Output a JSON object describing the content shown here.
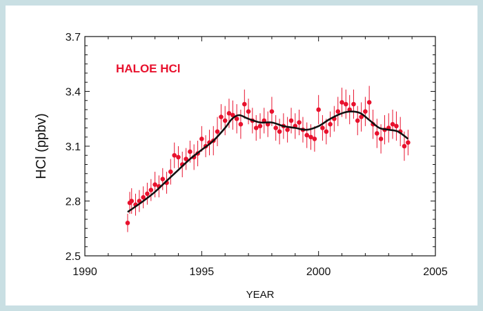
{
  "chart_data": {
    "type": "scatter",
    "title": "HALOE HCl",
    "xlabel": "YEAR",
    "ylabel": "HCl (ppbv)",
    "xlim": [
      1990,
      2005
    ],
    "ylim": [
      2.5,
      3.7
    ],
    "x_ticks": [
      1990,
      1995,
      2000,
      2005
    ],
    "x_tick_labels": [
      "1990",
      "1995",
      "2000",
      "2005"
    ],
    "y_ticks": [
      2.5,
      2.8,
      3.1,
      3.4,
      3.7
    ],
    "y_tick_labels": [
      "2.5",
      "2.8",
      "3.1",
      "3.4",
      "3.7"
    ],
    "grid": false,
    "colors": {
      "points": "#e8112d",
      "fit": "#111111",
      "title": "#e8112d"
    },
    "series": [
      {
        "kind": "points_with_error_bars",
        "x": [
          1991.83,
          1991.92,
          1992.0,
          1992.17,
          1992.33,
          1992.5,
          1992.67,
          1992.83,
          1993.0,
          1993.17,
          1993.33,
          1993.5,
          1993.67,
          1993.83,
          1994.0,
          1994.17,
          1994.33,
          1994.5,
          1994.67,
          1994.83,
          1995.0,
          1995.17,
          1995.33,
          1995.5,
          1995.67,
          1995.83,
          1996.0,
          1996.17,
          1996.33,
          1996.5,
          1996.67,
          1996.83,
          1997.0,
          1997.17,
          1997.33,
          1997.5,
          1997.67,
          1997.83,
          1998.0,
          1998.17,
          1998.33,
          1998.5,
          1998.67,
          1998.83,
          1999.0,
          1999.17,
          1999.33,
          1999.5,
          1999.67,
          1999.83,
          2000.0,
          2000.17,
          2000.33,
          2000.5,
          2000.67,
          2000.83,
          2001.0,
          2001.17,
          2001.33,
          2001.5,
          2001.67,
          2001.83,
          2002.0,
          2002.17,
          2002.33,
          2002.5,
          2002.67,
          2002.83,
          2003.0,
          2003.17,
          2003.33,
          2003.5,
          2003.67,
          2003.83
        ],
        "y": [
          2.68,
          2.79,
          2.8,
          2.78,
          2.8,
          2.82,
          2.84,
          2.86,
          2.89,
          2.88,
          2.92,
          2.9,
          2.96,
          3.05,
          3.04,
          3.0,
          3.03,
          3.07,
          3.04,
          3.06,
          3.14,
          3.1,
          3.12,
          3.13,
          3.18,
          3.26,
          3.24,
          3.28,
          3.27,
          3.25,
          3.22,
          3.33,
          3.29,
          3.24,
          3.2,
          3.21,
          3.24,
          3.22,
          3.29,
          3.2,
          3.18,
          3.21,
          3.19,
          3.24,
          3.21,
          3.23,
          3.19,
          3.16,
          3.15,
          3.14,
          3.3,
          3.2,
          3.18,
          3.22,
          3.25,
          3.29,
          3.34,
          3.33,
          3.3,
          3.33,
          3.24,
          3.26,
          3.29,
          3.34,
          3.22,
          3.17,
          3.14,
          3.19,
          3.2,
          3.22,
          3.21,
          3.18,
          3.1,
          3.12
        ],
        "error": [
          0.05,
          0.06,
          0.07,
          0.06,
          0.06,
          0.06,
          0.06,
          0.06,
          0.07,
          0.06,
          0.06,
          0.06,
          0.07,
          0.07,
          0.06,
          0.07,
          0.06,
          0.06,
          0.07,
          0.07,
          0.07,
          0.06,
          0.07,
          0.08,
          0.08,
          0.07,
          0.08,
          0.08,
          0.08,
          0.08,
          0.08,
          0.08,
          0.07,
          0.07,
          0.07,
          0.07,
          0.07,
          0.07,
          0.08,
          0.07,
          0.07,
          0.07,
          0.07,
          0.07,
          0.07,
          0.07,
          0.07,
          0.07,
          0.07,
          0.07,
          0.08,
          0.07,
          0.07,
          0.07,
          0.07,
          0.08,
          0.08,
          0.08,
          0.08,
          0.08,
          0.08,
          0.08,
          0.08,
          0.09,
          0.08,
          0.08,
          0.08,
          0.08,
          0.08,
          0.08,
          0.08,
          0.08,
          0.08,
          0.07
        ]
      },
      {
        "kind": "smooth_fit_line",
        "x": [
          1991.83,
          1992.5,
          1993.0,
          1993.5,
          1994.0,
          1994.5,
          1995.0,
          1995.5,
          1996.0,
          1996.3,
          1996.6,
          1997.0,
          1997.5,
          1998.0,
          1998.5,
          1999.0,
          1999.5,
          2000.0,
          2000.5,
          2001.0,
          2001.4,
          2001.8,
          2002.2,
          2002.6,
          2003.0,
          2003.4,
          2003.83
        ],
        "y": [
          2.74,
          2.8,
          2.85,
          2.91,
          2.97,
          3.03,
          3.08,
          3.13,
          3.2,
          3.25,
          3.27,
          3.25,
          3.23,
          3.23,
          3.21,
          3.2,
          3.19,
          3.21,
          3.25,
          3.28,
          3.29,
          3.28,
          3.24,
          3.2,
          3.19,
          3.18,
          3.14
        ]
      }
    ]
  }
}
